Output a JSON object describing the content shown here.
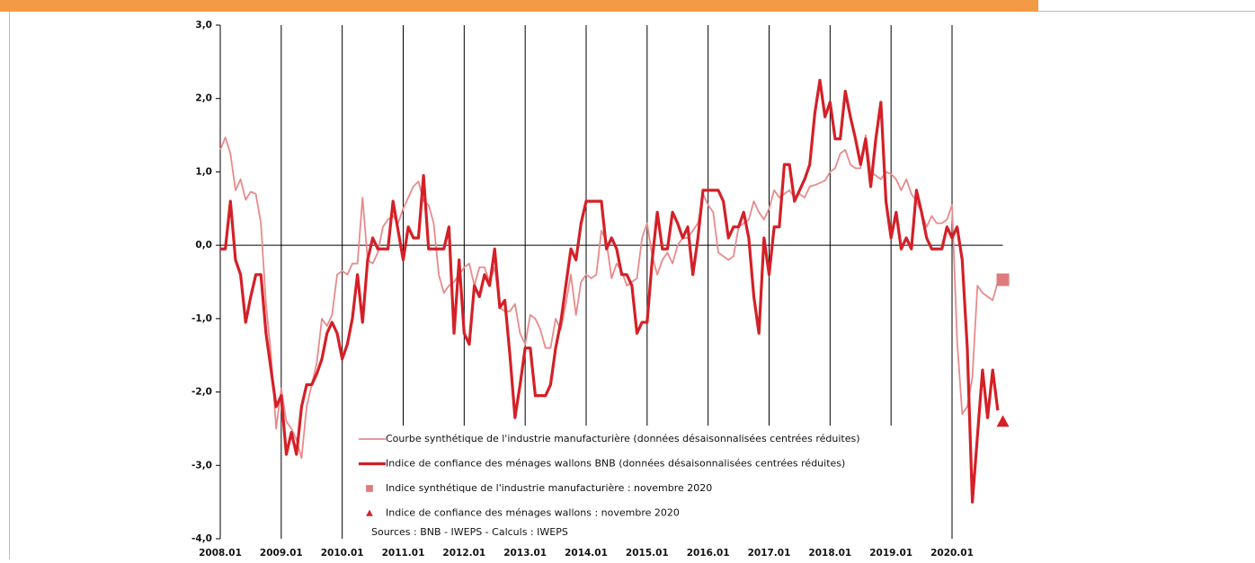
{
  "chart_data": {
    "type": "line",
    "categories": [
      "2008.01",
      null,
      null,
      null,
      null,
      null,
      null,
      null,
      null,
      null,
      null,
      null,
      "2009.01",
      null,
      null,
      null,
      null,
      null,
      null,
      null,
      null,
      null,
      null,
      null,
      "2010.01",
      null,
      null,
      null,
      null,
      null,
      null,
      null,
      null,
      null,
      null,
      null,
      "2011.01",
      null,
      null,
      null,
      null,
      null,
      null,
      null,
      null,
      null,
      null,
      null,
      "2012.01",
      null,
      null,
      null,
      null,
      null,
      null,
      null,
      null,
      null,
      null,
      null,
      "2013.01",
      null,
      null,
      null,
      null,
      null,
      null,
      null,
      null,
      null,
      null,
      null,
      "2014.01",
      null,
      null,
      null,
      null,
      null,
      null,
      null,
      null,
      null,
      null,
      null,
      "2015.01",
      null,
      null,
      null,
      null,
      null,
      null,
      null,
      null,
      null,
      null,
      null,
      "2016.01",
      null,
      null,
      null,
      null,
      null,
      null,
      null,
      null,
      null,
      null,
      null,
      "2017.01",
      null,
      null,
      null,
      null,
      null,
      null,
      null,
      null,
      null,
      null,
      null,
      "2018.01",
      null,
      null,
      null,
      null,
      null,
      null,
      null,
      null,
      null,
      null,
      null,
      "2019.01",
      null,
      null,
      null,
      null,
      null,
      null,
      null,
      null,
      null,
      null,
      null,
      "2020.01",
      null,
      null,
      null,
      null,
      null,
      null,
      null,
      null,
      null,
      null
    ],
    "series": [
      {
        "name": "Courbe synthétique de l'industrie manufacturière (données désaisonnalisées centrées réduites)",
        "color": "#e88a8c",
        "line_width": 1.8,
        "values": [
          1.3,
          1.47,
          1.25,
          0.75,
          0.9,
          0.62,
          0.73,
          0.7,
          0.3,
          -0.8,
          -1.5,
          -2.5,
          -1.95,
          -2.4,
          -2.5,
          -2.65,
          -2.9,
          -2.2,
          -1.9,
          -1.6,
          -1.0,
          -1.1,
          -0.95,
          -0.4,
          -0.35,
          -0.4,
          -0.25,
          -0.25,
          0.65,
          -0.2,
          -0.25,
          -0.1,
          0.25,
          0.35,
          0.4,
          0.3,
          0.5,
          0.65,
          0.8,
          0.87,
          0.6,
          0.55,
          0.3,
          -0.4,
          -0.65,
          -0.55,
          -0.5,
          -0.4,
          -0.3,
          -0.25,
          -0.55,
          -0.3,
          -0.3,
          -0.5,
          -0.3,
          -0.85,
          -0.9,
          -0.9,
          -0.8,
          -1.2,
          -1.35,
          -0.95,
          -1.0,
          -1.15,
          -1.4,
          -1.4,
          -1.0,
          -1.15,
          -0.8,
          -0.4,
          -0.95,
          -0.5,
          -0.4,
          -0.45,
          -0.4,
          0.2,
          0.05,
          -0.45,
          -0.25,
          -0.35,
          -0.55,
          -0.5,
          -0.45,
          0.1,
          0.3,
          -0.15,
          -0.4,
          -0.2,
          -0.1,
          -0.25,
          0.0,
          0.1,
          0.1,
          0.2,
          0.3,
          0.7,
          0.55,
          0.45,
          -0.1,
          -0.15,
          -0.2,
          -0.15,
          0.25,
          0.3,
          0.35,
          0.6,
          0.45,
          0.35,
          0.5,
          0.75,
          0.65,
          0.7,
          0.75,
          0.65,
          0.7,
          0.65,
          0.8,
          0.82,
          0.85,
          0.88,
          1.0,
          1.05,
          1.25,
          1.3,
          1.1,
          1.05,
          1.05,
          1.5,
          1.0,
          0.95,
          0.9,
          1.0,
          0.97,
          0.9,
          0.75,
          0.9,
          0.7,
          0.6,
          0.45,
          0.25,
          0.4,
          0.3,
          0.3,
          0.35,
          0.55,
          -1.3,
          -2.3,
          -2.2,
          -1.8,
          -0.55,
          -0.65,
          -0.7,
          -0.75,
          -0.5,
          null
        ]
      },
      {
        "name": "Indice de confiance des ménages wallons BNB (données désaisonnalisées centrées réduites)",
        "color": "#d42027",
        "line_width": 3.2,
        "values": [
          -0.05,
          -0.05,
          0.6,
          -0.2,
          -0.4,
          -1.05,
          -0.7,
          -0.4,
          -0.4,
          -1.2,
          -1.7,
          -2.2,
          -2.05,
          -2.85,
          -2.55,
          -2.85,
          -2.2,
          -1.9,
          -1.9,
          -1.75,
          -1.55,
          -1.2,
          -1.05,
          -1.2,
          -1.55,
          -1.35,
          -1.0,
          -0.4,
          -1.05,
          -0.2,
          0.1,
          -0.05,
          -0.05,
          -0.05,
          0.6,
          0.2,
          -0.2,
          0.25,
          0.1,
          0.1,
          0.95,
          -0.05,
          -0.05,
          -0.05,
          -0.05,
          0.25,
          -1.2,
          -0.2,
          -1.2,
          -1.35,
          -0.55,
          -0.7,
          -0.4,
          -0.55,
          -0.05,
          -0.85,
          -0.75,
          -1.5,
          -2.35,
          -1.9,
          -1.4,
          -1.4,
          -2.05,
          -2.05,
          -2.05,
          -1.9,
          -1.4,
          -1.05,
          -0.55,
          -0.05,
          -0.2,
          0.3,
          0.6,
          0.6,
          0.6,
          0.6,
          -0.05,
          0.1,
          -0.05,
          -0.4,
          -0.4,
          -0.55,
          -1.2,
          -1.05,
          -1.05,
          -0.2,
          0.45,
          -0.05,
          -0.05,
          0.45,
          0.3,
          0.1,
          0.25,
          -0.4,
          0.1,
          0.75,
          0.75,
          0.75,
          0.75,
          0.6,
          0.1,
          0.25,
          0.25,
          0.45,
          0.1,
          -0.7,
          -1.2,
          0.1,
          -0.4,
          0.25,
          0.25,
          1.1,
          1.1,
          0.6,
          0.75,
          0.9,
          1.1,
          1.8,
          2.25,
          1.75,
          1.95,
          1.45,
          1.45,
          2.1,
          1.75,
          1.45,
          1.1,
          1.45,
          0.8,
          1.45,
          1.95,
          0.6,
          0.1,
          0.45,
          -0.05,
          0.1,
          -0.05,
          0.75,
          0.45,
          0.1,
          -0.05,
          -0.05,
          -0.05,
          0.25,
          0.1,
          0.25,
          -0.2,
          -1.4,
          -3.5,
          -2.6,
          -1.7,
          -2.35,
          -1.7,
          -2.25,
          null
        ]
      },
      {
        "name": "Indice synthétique de l'industrie manufacturière : novembre 2020",
        "color": "#e07b7d",
        "marker": "square",
        "values": [
          null,
          null,
          null,
          null,
          null,
          null,
          null,
          null,
          null,
          null,
          null,
          null,
          null,
          null,
          null,
          null,
          null,
          null,
          null,
          null,
          null,
          null,
          null,
          null,
          null,
          null,
          null,
          null,
          null,
          null,
          null,
          null,
          null,
          null,
          null,
          null,
          null,
          null,
          null,
          null,
          null,
          null,
          null,
          null,
          null,
          null,
          null,
          null,
          null,
          null,
          null,
          null,
          null,
          null,
          null,
          null,
          null,
          null,
          null,
          null,
          null,
          null,
          null,
          null,
          null,
          null,
          null,
          null,
          null,
          null,
          null,
          null,
          null,
          null,
          null,
          null,
          null,
          null,
          null,
          null,
          null,
          null,
          null,
          null,
          null,
          null,
          null,
          null,
          null,
          null,
          null,
          null,
          null,
          null,
          null,
          null,
          null,
          null,
          null,
          null,
          null,
          null,
          null,
          null,
          null,
          null,
          null,
          null,
          null,
          null,
          null,
          null,
          null,
          null,
          null,
          null,
          null,
          null,
          null,
          null,
          null,
          null,
          null,
          null,
          null,
          null,
          null,
          null,
          null,
          null,
          null,
          null,
          null,
          null,
          null,
          null,
          null,
          null,
          null,
          null,
          null,
          null,
          null,
          null,
          null,
          null,
          null,
          null,
          null,
          null,
          null,
          null,
          null,
          null,
          -0.47
        ]
      },
      {
        "name": "Indice de confiance des ménages wallons : novembre 2020",
        "color": "#d42027",
        "marker": "triangle",
        "values": [
          null,
          null,
          null,
          null,
          null,
          null,
          null,
          null,
          null,
          null,
          null,
          null,
          null,
          null,
          null,
          null,
          null,
          null,
          null,
          null,
          null,
          null,
          null,
          null,
          null,
          null,
          null,
          null,
          null,
          null,
          null,
          null,
          null,
          null,
          null,
          null,
          null,
          null,
          null,
          null,
          null,
          null,
          null,
          null,
          null,
          null,
          null,
          null,
          null,
          null,
          null,
          null,
          null,
          null,
          null,
          null,
          null,
          null,
          null,
          null,
          null,
          null,
          null,
          null,
          null,
          null,
          null,
          null,
          null,
          null,
          null,
          null,
          null,
          null,
          null,
          null,
          null,
          null,
          null,
          null,
          null,
          null,
          null,
          null,
          null,
          null,
          null,
          null,
          null,
          null,
          null,
          null,
          null,
          null,
          null,
          null,
          null,
          null,
          null,
          null,
          null,
          null,
          null,
          null,
          null,
          null,
          null,
          null,
          null,
          null,
          null,
          null,
          null,
          null,
          null,
          null,
          null,
          null,
          null,
          null,
          null,
          null,
          null,
          null,
          null,
          null,
          null,
          null,
          null,
          null,
          null,
          null,
          null,
          null,
          null,
          null,
          null,
          null,
          null,
          null,
          null,
          null,
          null,
          null,
          null,
          null,
          null,
          null,
          null,
          null,
          null,
          null,
          null,
          null,
          -2.4
        ]
      }
    ],
    "ylim": [
      -4,
      3
    ],
    "yticks": [
      {
        "value": -4,
        "label": "-4,0"
      },
      {
        "value": -3,
        "label": "-3,0"
      },
      {
        "value": -2,
        "label": "-2,0"
      },
      {
        "value": -1,
        "label": "-1,0"
      },
      {
        "value": 0,
        "label": "0,0"
      },
      {
        "value": 1,
        "label": "1,0"
      },
      {
        "value": 2,
        "label": "2,0"
      },
      {
        "value": 3,
        "label": "3,0"
      }
    ],
    "annotation": "Sources : BNB - IWEPS - Calculs : IWEPS"
  }
}
